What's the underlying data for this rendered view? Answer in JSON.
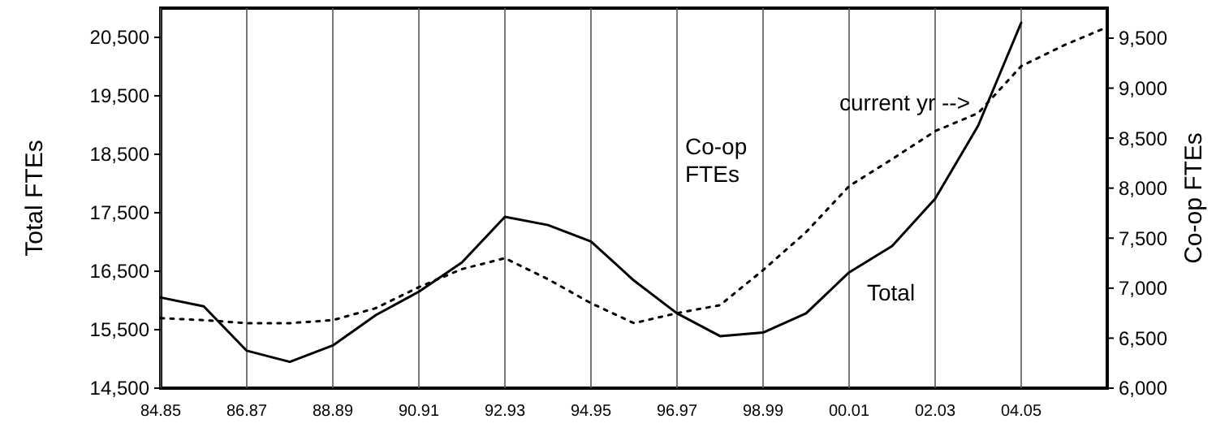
{
  "chart_data": {
    "type": "line",
    "ylabel": "Total FTEs",
    "y2label": "Co-op FTEs",
    "categories": [
      "84.85",
      null,
      "86.87",
      null,
      "88.89",
      null,
      "90.91",
      null,
      "92.93",
      null,
      "94.95",
      null,
      "96.97",
      null,
      "98.99",
      null,
      "00.01",
      null,
      "02.03",
      null,
      "04.05",
      null,
      null
    ],
    "series": [
      {
        "color": "#000000",
        "line_style": "solid",
        "values": [
          16050,
          15900,
          15140,
          14950,
          15230,
          15750,
          16150,
          16650,
          17430,
          17290,
          17010,
          16340,
          15780,
          15390,
          15450,
          15780,
          16480,
          16930,
          17740,
          18990,
          20750,
          null,
          null
        ]
      },
      {
        "color": "#000000",
        "line_style": "dotted",
        "axis": "y2",
        "values": [
          6700,
          6680,
          6650,
          6650,
          6680,
          6800,
          7010,
          7190,
          7300,
          7090,
          6850,
          6650,
          6750,
          6830,
          7180,
          7560,
          8020,
          8290,
          8570,
          8750,
          9220,
          9430,
          9610
        ]
      }
    ],
    "ylim": [
      14500,
      21000
    ],
    "yticks": [
      {
        "value": 14500,
        "label": "14,500"
      },
      {
        "value": 15500,
        "label": "15,500"
      },
      {
        "value": 16500,
        "label": "16,500"
      },
      {
        "value": 17500,
        "label": "17,500"
      },
      {
        "value": 18500,
        "label": "18,500"
      },
      {
        "value": 19500,
        "label": "19,500"
      },
      {
        "value": 20500,
        "label": "20,500"
      }
    ],
    "y2lim": [
      6000,
      9800
    ],
    "y2ticks": [
      {
        "value": 6000,
        "label": "6,000"
      },
      {
        "value": 6500,
        "label": "6,500"
      },
      {
        "value": 7000,
        "label": "7,000"
      },
      {
        "value": 7500,
        "label": "7,500"
      },
      {
        "value": 8000,
        "label": "8,000"
      },
      {
        "value": 8500,
        "label": "8,500"
      },
      {
        "value": 9000,
        "label": "9,000"
      },
      {
        "value": 9500,
        "label": "9,500"
      }
    ],
    "grid": "x",
    "marker": "none",
    "annotations": [
      "Total",
      "Co-op FTEs",
      "current yr -->"
    ]
  }
}
